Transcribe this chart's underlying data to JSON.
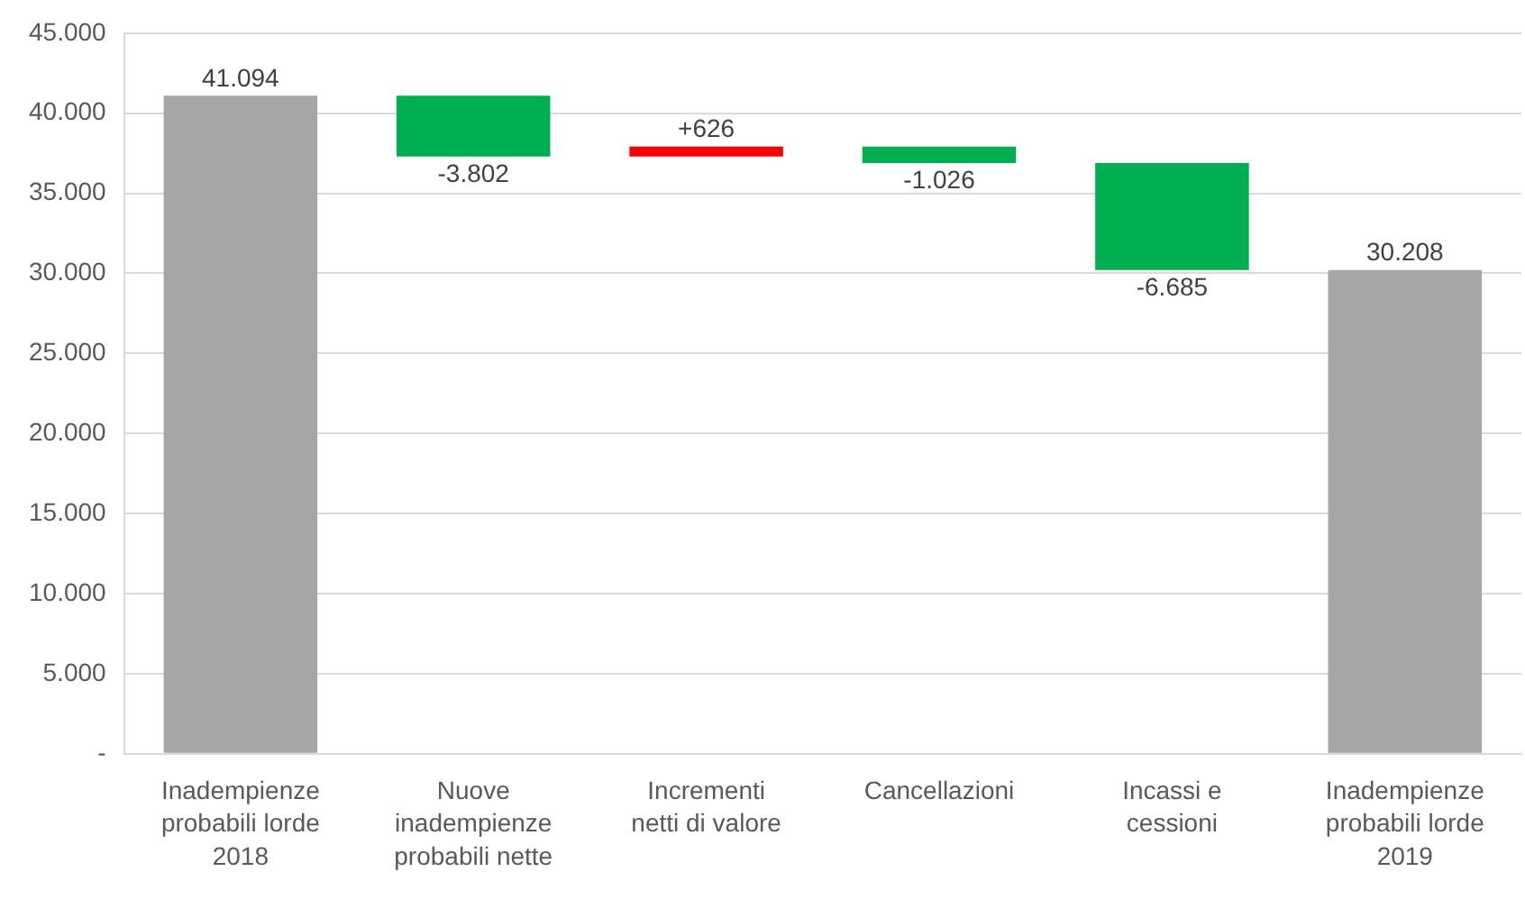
{
  "chart_data": {
    "type": "bar",
    "categories": [
      "Inadempienze probabili lorde 2018",
      "Nuove inadempienze probabili nette",
      "Incrementi netti di valore",
      "Cancellazioni",
      "Incassi e cessioni",
      "Inadempienze probabili lorde 2019"
    ],
    "values": [
      41094,
      -3802,
      626,
      -1026,
      -6685,
      30208
    ],
    "base": [
      0,
      41094,
      37292,
      37918,
      36892,
      0
    ],
    "colors": [
      "#a6a6a6",
      "#00b050",
      "#ff0000",
      "#00b050",
      "#00b050",
      "#a6a6a6"
    ],
    "value_labels": [
      "41.094",
      "-3.802",
      "+626",
      "-1.026",
      "-6.685",
      "30.208"
    ],
    "ylim": [
      0,
      45000
    ],
    "yticks": [
      {
        "value": 0,
        "label": "-"
      },
      {
        "value": 5000,
        "label": "5.000"
      },
      {
        "value": 10000,
        "label": "10.000"
      },
      {
        "value": 15000,
        "label": "15.000"
      },
      {
        "value": 20000,
        "label": "20.000"
      },
      {
        "value": 25000,
        "label": "25.000"
      },
      {
        "value": 30000,
        "label": "30.000"
      },
      {
        "value": 35000,
        "label": "35.000"
      },
      {
        "value": 40000,
        "label": "40.000"
      },
      {
        "value": 45000,
        "label": "45.000"
      }
    ],
    "grid": "y"
  }
}
